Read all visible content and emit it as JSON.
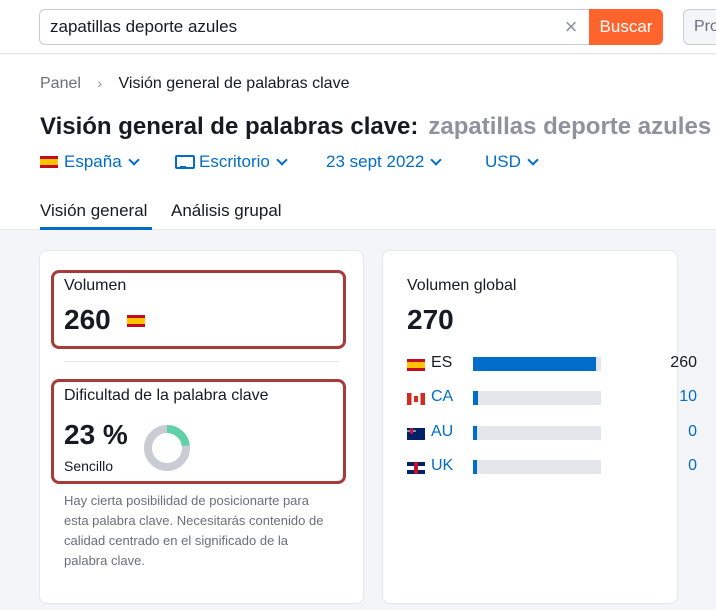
{
  "search": {
    "value": "zapatillas deporte azules",
    "clear_symbol": "×",
    "button_label": "Buscar",
    "pro_label": "Pro"
  },
  "breadcrumb": {
    "home": "Panel",
    "separator": "›",
    "current": "Visión general de palabras clave"
  },
  "title": {
    "prefix": "Visión general de palabras clave:",
    "keyword": "zapatillas deporte azules"
  },
  "filters": {
    "country": "España",
    "device": "Escritorio",
    "date": "23 sept 2022",
    "currency": "USD"
  },
  "tabs": [
    {
      "label": "Visión general",
      "active": true
    },
    {
      "label": "Análisis grupal",
      "active": false
    }
  ],
  "volume": {
    "label": "Volumen",
    "value": "260",
    "flag": "flag-es-icon"
  },
  "difficulty": {
    "label": "Dificultad de la palabra clave",
    "value": "23 %",
    "percent": 23,
    "level": "Sencillo",
    "description": "Hay cierta posibilidad de posicionarte para esta palabra clave. Necesitarás contenido de calidad centrado en el significado de la palabra clave.",
    "colors": {
      "filled": "#5ed1a6",
      "empty": "#c9ccd4"
    }
  },
  "global_volume": {
    "label": "Volumen global",
    "value": "270",
    "rows": [
      {
        "code": "ES",
        "value": "260",
        "fraction": 0.96,
        "flag": "flag-es-icon"
      },
      {
        "code": "CA",
        "value": "10",
        "fraction": 0.04,
        "flag": "flag-ca-icon"
      },
      {
        "code": "AU",
        "value": "0",
        "fraction": 0.03,
        "flag": "flag-au-icon"
      },
      {
        "code": "UK",
        "value": "0",
        "fraction": 0.03,
        "flag": "flag-uk-icon"
      }
    ]
  },
  "colors": {
    "accent": "#006dca",
    "search_button": "#ff642d",
    "highlight": "#a73b3b"
  }
}
